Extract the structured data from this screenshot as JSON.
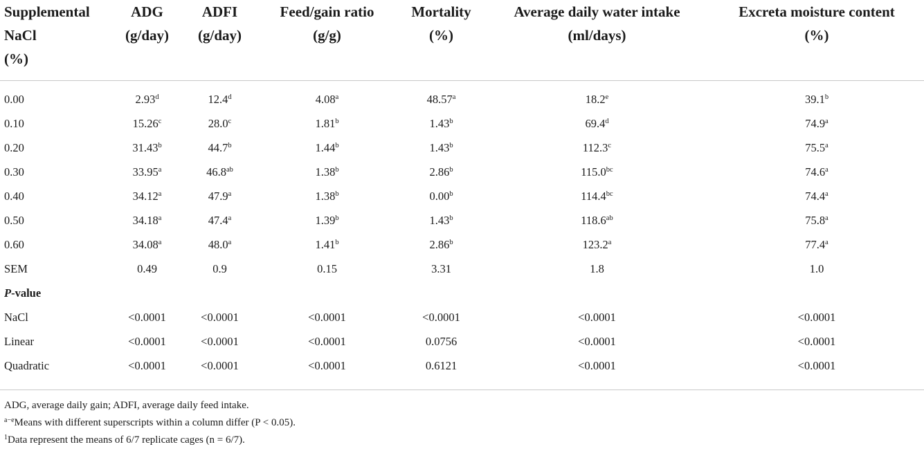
{
  "table": {
    "headers": [
      [
        "Supplemental",
        "NaCl",
        "(%)"
      ],
      [
        "ADG",
        "(g/day)"
      ],
      [
        "ADFI",
        "(g/day)"
      ],
      [
        "Feed/gain ratio",
        "(g/g)"
      ],
      [
        "Mortality",
        "(%)"
      ],
      [
        "Average daily water intake",
        "(ml/days)"
      ],
      [
        "Excreta moisture content",
        "(%)"
      ]
    ],
    "rows": [
      {
        "label": "0.00",
        "cells": [
          [
            "2.93",
            "d"
          ],
          [
            "12.4",
            "d"
          ],
          [
            "4.08",
            "a"
          ],
          [
            "48.57",
            "a"
          ],
          [
            "18.2",
            "e"
          ],
          [
            "39.1",
            "b"
          ]
        ]
      },
      {
        "label": "0.10",
        "cells": [
          [
            "15.26",
            "c"
          ],
          [
            "28.0",
            "c"
          ],
          [
            "1.81",
            "b"
          ],
          [
            "1.43",
            "b"
          ],
          [
            "69.4",
            "d"
          ],
          [
            "74.9",
            "a"
          ]
        ]
      },
      {
        "label": "0.20",
        "cells": [
          [
            "31.43",
            "b"
          ],
          [
            "44.7",
            "b"
          ],
          [
            "1.44",
            "b"
          ],
          [
            "1.43",
            "b"
          ],
          [
            "112.3",
            "c"
          ],
          [
            "75.5",
            "a"
          ]
        ]
      },
      {
        "label": "0.30",
        "cells": [
          [
            "33.95",
            "a"
          ],
          [
            "46.8",
            "ab"
          ],
          [
            "1.38",
            "b"
          ],
          [
            "2.86",
            "b"
          ],
          [
            "115.0",
            "bc"
          ],
          [
            "74.6",
            "a"
          ]
        ]
      },
      {
        "label": "0.40",
        "cells": [
          [
            "34.12",
            "a"
          ],
          [
            "47.9",
            "a"
          ],
          [
            "1.38",
            "b"
          ],
          [
            "0.00",
            "b"
          ],
          [
            "114.4",
            "bc"
          ],
          [
            "74.4",
            "a"
          ]
        ]
      },
      {
        "label": "0.50",
        "cells": [
          [
            "34.18",
            "a"
          ],
          [
            "47.4",
            "a"
          ],
          [
            "1.39",
            "b"
          ],
          [
            "1.43",
            "b"
          ],
          [
            "118.6",
            "ab"
          ],
          [
            "75.8",
            "a"
          ]
        ]
      },
      {
        "label": "0.60",
        "cells": [
          [
            "34.08",
            "a"
          ],
          [
            "48.0",
            "a"
          ],
          [
            "1.41",
            "b"
          ],
          [
            "2.86",
            "b"
          ],
          [
            "123.2",
            "a"
          ],
          [
            "77.4",
            "a"
          ]
        ]
      },
      {
        "label": "SEM",
        "cells": [
          [
            "0.49",
            ""
          ],
          [
            "0.9",
            ""
          ],
          [
            "0.15",
            ""
          ],
          [
            "3.31",
            ""
          ],
          [
            "1.8",
            ""
          ],
          [
            "1.0",
            ""
          ]
        ]
      }
    ],
    "pvalue_heading": {
      "italic": "P",
      "rest": "-value"
    },
    "pvalue_rows": [
      {
        "label": "NaCl",
        "cells": [
          "<0.0001",
          "<0.0001",
          "<0.0001",
          "<0.0001",
          "<0.0001",
          "<0.0001"
        ]
      },
      {
        "label": "Linear",
        "cells": [
          "<0.0001",
          "<0.0001",
          "<0.0001",
          "0.0756",
          "<0.0001",
          "<0.0001"
        ]
      },
      {
        "label": "Quadratic",
        "cells": [
          "<0.0001",
          "<0.0001",
          "<0.0001",
          "0.6121",
          "<0.0001",
          "<0.0001"
        ]
      }
    ]
  },
  "footnotes": {
    "abbreviations": "ADG, average daily gain; ADFI, average daily feed intake.",
    "superscript_mark": "a−e",
    "superscript_note": "Means with different superscripts within a column differ (P < 0.05).",
    "data_mark": "1",
    "data_note": "Data represent the means of 6/7 replicate cages (n = 6/7)."
  }
}
